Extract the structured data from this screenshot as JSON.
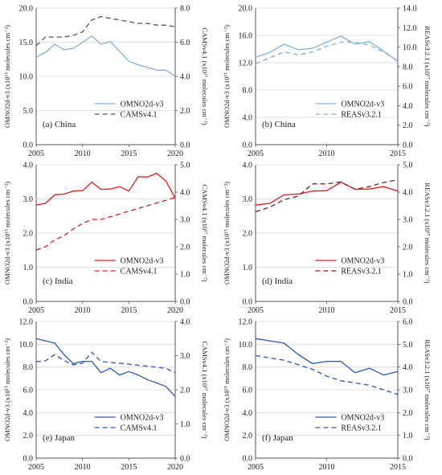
{
  "figure": {
    "colors": {
      "china": "#7fb2dc",
      "india": "#e31a1c",
      "japan": "#2b55c4",
      "black": "#555555",
      "axis": "#555555",
      "grid": "#d9d9d9"
    }
  },
  "chart_data": [
    {
      "id": "a",
      "type": "line",
      "panel_label": "(a) China",
      "ylabel": "OMNO2d-v3 (x10¹⁵ molecules cm⁻²)",
      "y2label": "CAMSv4.1 (x10¹⁷ molecules cm⁻²)",
      "xlim": [
        2005,
        2020
      ],
      "xticks": [
        2005,
        2010,
        2015,
        2020
      ],
      "ylim": [
        0,
        20
      ],
      "yticks": [
        "0.0",
        "5.0",
        "10.0",
        "15.0",
        "20.0"
      ],
      "y2lim": [
        0,
        8
      ],
      "y2ticks": [
        "0.0",
        "2.0",
        "4.0",
        "6.0",
        "8.0"
      ],
      "grid": true,
      "legend_position": "lower-right",
      "series": [
        {
          "name": "OMNO2d-v3",
          "axis": "left",
          "color": "#7fb2dc",
          "dash": "solid",
          "x": [
            2005,
            2006,
            2007,
            2008,
            2009,
            2010,
            2011,
            2012,
            2013,
            2014,
            2015,
            2016,
            2017,
            2018,
            2019,
            2020
          ],
          "values": [
            12.8,
            13.5,
            14.7,
            13.9,
            14.1,
            15.0,
            15.9,
            14.7,
            15.1,
            13.7,
            12.2,
            11.7,
            11.3,
            10.9,
            10.9,
            10.0
          ]
        },
        {
          "name": "CAMSv4.1",
          "axis": "right",
          "color": "#555555",
          "dash": "dashed",
          "x": [
            2005,
            2006,
            2007,
            2008,
            2009,
            2010,
            2011,
            2012,
            2013,
            2014,
            2015,
            2016,
            2017,
            2018,
            2019,
            2020
          ],
          "values": [
            5.8,
            6.3,
            6.3,
            6.3,
            6.4,
            6.6,
            7.3,
            7.5,
            7.4,
            7.3,
            7.2,
            7.1,
            7.1,
            7.0,
            7.0,
            6.9
          ]
        }
      ]
    },
    {
      "id": "b",
      "type": "line",
      "panel_label": "(b) China",
      "ylabel": "OMNO2d-v3 (x10¹⁵ molecules cm⁻²)",
      "y2label": "REASv3.2.1 (x10¹⁷ molecules cm⁻²)",
      "xlim": [
        2005,
        2015
      ],
      "xticks": [
        2005,
        2010,
        2015
      ],
      "ylim": [
        0,
        20
      ],
      "yticks": [
        "0.0",
        "4.0",
        "8.0",
        "12.0",
        "16.0",
        "20.0"
      ],
      "y2lim": [
        0,
        14
      ],
      "y2ticks": [
        "0.0",
        "2.0",
        "4.0",
        "6.0",
        "8.0",
        "10.0",
        "12.0",
        "14.0"
      ],
      "grid": true,
      "legend_position": "lower-right",
      "series": [
        {
          "name": "OMNO2d-v3",
          "axis": "left",
          "color": "#7fb2dc",
          "dash": "solid",
          "x": [
            2005,
            2006,
            2007,
            2008,
            2009,
            2010,
            2011,
            2012,
            2013,
            2014,
            2015
          ],
          "values": [
            12.8,
            13.5,
            14.7,
            13.9,
            14.1,
            15.0,
            15.9,
            14.7,
            15.1,
            13.7,
            12.2
          ]
        },
        {
          "name": "REASv3.2.1",
          "axis": "right",
          "color": "#7fb2dc",
          "dash": "dashed",
          "x": [
            2005,
            2006,
            2007,
            2008,
            2009,
            2010,
            2011,
            2012,
            2013,
            2014,
            2015
          ],
          "values": [
            8.3,
            8.9,
            9.5,
            9.2,
            9.5,
            10.1,
            10.5,
            10.5,
            10.2,
            9.5,
            8.6
          ]
        }
      ]
    },
    {
      "id": "c",
      "type": "line",
      "panel_label": "(c) India",
      "ylabel": "OMNO2d-v3 (x10¹⁵ molecules cm⁻²)",
      "y2label": "CAMSv4.1 (x10¹⁷ molecules cm⁻²)",
      "xlim": [
        2005,
        2020
      ],
      "xticks": [
        2005,
        2010,
        2015,
        2020
      ],
      "ylim": [
        0,
        4
      ],
      "yticks": [
        "0.0",
        "1.0",
        "2.0",
        "3.0",
        "4.0"
      ],
      "y2lim": [
        0,
        5
      ],
      "y2ticks": [
        "0.0",
        "1.0",
        "2.0",
        "3.0",
        "4.0",
        "5.0"
      ],
      "grid": true,
      "legend_position": "lower-right",
      "series": [
        {
          "name": "OMNO2d-v3",
          "axis": "left",
          "color": "#e31a1c",
          "dash": "solid",
          "x": [
            2005,
            2006,
            2007,
            2008,
            2009,
            2010,
            2011,
            2012,
            2013,
            2014,
            2015,
            2016,
            2017,
            2018,
            2019,
            2020
          ],
          "values": [
            2.82,
            2.87,
            3.12,
            3.14,
            3.23,
            3.24,
            3.49,
            3.28,
            3.29,
            3.36,
            3.23,
            3.65,
            3.64,
            3.75,
            3.52,
            3.02
          ]
        },
        {
          "name": "CAMSv4.1",
          "axis": "right",
          "color": "#e31a1c",
          "dash": "dashed",
          "x": [
            2005,
            2006,
            2007,
            2008,
            2009,
            2010,
            2011,
            2012,
            2013,
            2014,
            2015,
            2016,
            2017,
            2018,
            2019,
            2020
          ],
          "values": [
            1.88,
            2.0,
            2.25,
            2.4,
            2.65,
            2.85,
            3.0,
            3.0,
            3.1,
            3.2,
            3.3,
            3.4,
            3.5,
            3.6,
            3.7,
            3.8
          ]
        }
      ]
    },
    {
      "id": "d",
      "type": "line",
      "panel_label": "(d) India",
      "ylabel": "OMNO2d-v3 (x10¹⁵ molecules cm⁻²)",
      "y2label": "REASv3.2.1 (x10¹⁷ molecules cm⁻²)",
      "xlim": [
        2005,
        2015
      ],
      "xticks": [
        2005,
        2010,
        2015
      ],
      "ylim": [
        0,
        4
      ],
      "yticks": [
        "0.0",
        "1.0",
        "2.0",
        "3.0",
        "4.0"
      ],
      "y2lim": [
        0,
        5
      ],
      "y2ticks": [
        "0.0",
        "1.0",
        "2.0",
        "3.0",
        "4.0",
        "5.0"
      ],
      "grid": true,
      "legend_position": "lower-right",
      "series": [
        {
          "name": "OMNO2d-v3",
          "axis": "left",
          "color": "#e31a1c",
          "dash": "solid",
          "x": [
            2005,
            2006,
            2007,
            2008,
            2009,
            2010,
            2011,
            2012,
            2013,
            2014,
            2015
          ],
          "values": [
            2.82,
            2.87,
            3.12,
            3.14,
            3.23,
            3.24,
            3.49,
            3.28,
            3.29,
            3.36,
            3.23
          ]
        },
        {
          "name": "REASv3.2.1",
          "axis": "right",
          "color": "#8b1a1a",
          "dash": "dashed",
          "x": [
            2005,
            2006,
            2007,
            2008,
            2009,
            2010,
            2011,
            2012,
            2013,
            2014,
            2015
          ],
          "values": [
            3.28,
            3.45,
            3.72,
            3.85,
            4.3,
            4.3,
            4.37,
            4.1,
            4.2,
            4.35,
            4.45
          ]
        }
      ]
    },
    {
      "id": "e",
      "type": "line",
      "panel_label": "(e) Japan",
      "ylabel": "OMNO2d-v3 (x10¹⁵ molecules cm⁻²)",
      "y2label": "CAMSv4.1 (x10¹⁷ molecules cm⁻²)",
      "xlim": [
        2005,
        2020
      ],
      "xticks": [
        2005,
        2010,
        2015,
        2020
      ],
      "ylim": [
        0,
        12
      ],
      "yticks": [
        "0.0",
        "2.0",
        "4.0",
        "6.0",
        "8.0",
        "10.0",
        "12.0"
      ],
      "y2lim": [
        0,
        4
      ],
      "y2ticks": [
        "0.0",
        "1.0",
        "2.0",
        "3.0",
        "4.0"
      ],
      "grid": true,
      "legend_position": "lower-right",
      "series": [
        {
          "name": "OMNO2d-v3",
          "axis": "left",
          "color": "#2b55c4",
          "dash": "solid",
          "x": [
            2005,
            2006,
            2007,
            2008,
            2009,
            2010,
            2011,
            2012,
            2013,
            2014,
            2015,
            2016,
            2017,
            2018,
            2019,
            2020
          ],
          "values": [
            10.5,
            10.3,
            10.1,
            9.1,
            8.3,
            8.5,
            8.5,
            7.5,
            7.9,
            7.3,
            7.6,
            7.3,
            6.9,
            6.6,
            6.3,
            5.4
          ]
        },
        {
          "name": "CAMSv4.1",
          "axis": "right",
          "color": "#2b55c4",
          "dash": "dashed",
          "x": [
            2005,
            2006,
            2007,
            2008,
            2009,
            2010,
            2011,
            2012,
            2013,
            2014,
            2015,
            2016,
            2017,
            2018,
            2019,
            2020
          ],
          "values": [
            2.82,
            2.85,
            3.03,
            2.86,
            2.73,
            2.78,
            3.1,
            2.83,
            2.8,
            2.78,
            2.75,
            2.72,
            2.69,
            2.66,
            2.63,
            2.5
          ]
        }
      ]
    },
    {
      "id": "f",
      "type": "line",
      "panel_label": "(f) Japan",
      "ylabel": "OMNO2d-v3 (x10¹⁵ molecules cm⁻²)",
      "y2label": "REASv3.2.1 (x10¹⁷ molecules cm⁻²)",
      "xlim": [
        2005,
        2015
      ],
      "xticks": [
        2005,
        2010,
        2015
      ],
      "ylim": [
        0,
        12
      ],
      "yticks": [
        "0.0",
        "2.0",
        "4.0",
        "6.0",
        "8.0",
        "10.0",
        "12.0"
      ],
      "y2lim": [
        0,
        6
      ],
      "y2ticks": [
        "0.0",
        "1.0",
        "2.0",
        "3.0",
        "4.0",
        "5.0",
        "6.0"
      ],
      "grid": true,
      "legend_position": "lower-right",
      "series": [
        {
          "name": "OMNO2d-v3",
          "axis": "left",
          "color": "#2b55c4",
          "dash": "solid",
          "x": [
            2005,
            2006,
            2007,
            2008,
            2009,
            2010,
            2011,
            2012,
            2013,
            2014,
            2015
          ],
          "values": [
            10.5,
            10.3,
            10.1,
            9.1,
            8.3,
            8.5,
            8.5,
            7.5,
            7.9,
            7.3,
            7.6
          ]
        },
        {
          "name": "REASv3.2.1",
          "axis": "right",
          "color": "#2b55c4",
          "dash": "dashed",
          "x": [
            2005,
            2006,
            2007,
            2008,
            2009,
            2010,
            2011,
            2012,
            2013,
            2014,
            2015
          ],
          "values": [
            4.5,
            4.4,
            4.3,
            4.1,
            3.9,
            3.6,
            3.4,
            3.3,
            3.2,
            3.0,
            2.8
          ]
        }
      ]
    }
  ]
}
